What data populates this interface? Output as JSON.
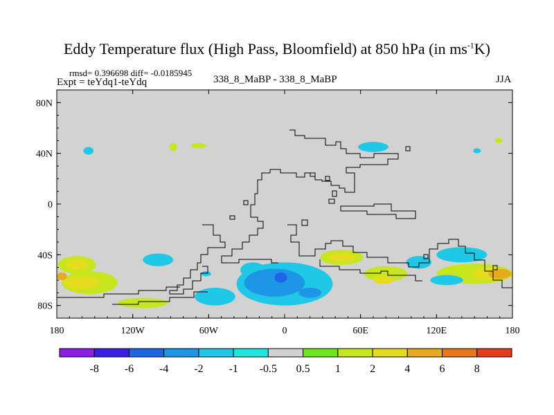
{
  "chart_data": {
    "type": "heatmap",
    "title_main": "Eddy Temperature flux (High Pass, Bloomfield) at 850 hPa (in ms",
    "title_sup": "-1",
    "title_end": "K)",
    "stats": "rmsd= 0.396698 diff= -0.0185945",
    "expt": "Expt = teYdq1-teYdq",
    "cases": "338_8_MaBP - 338_8_MaBP",
    "season": "JJA",
    "x_range": [
      -180,
      180
    ],
    "y_range": [
      -90,
      90
    ],
    "x_ticks": [
      {
        "value": -180,
        "label": "180"
      },
      {
        "value": -120,
        "label": "120W"
      },
      {
        "value": -60,
        "label": "60W"
      },
      {
        "value": 0,
        "label": "0"
      },
      {
        "value": 60,
        "label": "60E"
      },
      {
        "value": 120,
        "label": "120E"
      },
      {
        "value": 180,
        "label": "180"
      }
    ],
    "y_ticks": [
      {
        "value": 80,
        "label": "80N"
      },
      {
        "value": 40,
        "label": "40N"
      },
      {
        "value": 0,
        "label": "0"
      },
      {
        "value": -40,
        "label": "40S"
      },
      {
        "value": -80,
        "label": "80S"
      }
    ],
    "colorbar": {
      "levels": [
        "-8",
        "-6",
        "-4",
        "-2",
        "-1",
        "-0.5",
        "0.5",
        "1",
        "2",
        "4",
        "6",
        "8"
      ],
      "colors": [
        "#8c1ee6",
        "#3a1ee6",
        "#1e64e6",
        "#1e96e6",
        "#1ec8e6",
        "#1ee6dc",
        "#d2d2d2",
        "#6ee61e",
        "#c8e61e",
        "#e6dc1e",
        "#e6aa1e",
        "#e6781e",
        "#e63c1e"
      ]
    },
    "anomalies": [
      {
        "lon": -155,
        "lat": 42,
        "rx": 4,
        "ry": 3,
        "level": "-1"
      },
      {
        "lon": -88,
        "lat": 45,
        "rx": 3,
        "ry": 3,
        "level": "1"
      },
      {
        "lon": -68,
        "lat": 46,
        "rx": 6,
        "ry": 2,
        "level": "1"
      },
      {
        "lon": 70,
        "lat": 45,
        "rx": 12,
        "ry": 4,
        "level": "-1"
      },
      {
        "lon": 152,
        "lat": 42,
        "rx": 3,
        "ry": 2,
        "level": "-1"
      },
      {
        "lon": 169,
        "lat": 50,
        "rx": 3,
        "ry": 2,
        "level": "1"
      },
      {
        "lon": -164,
        "lat": -48,
        "rx": 15,
        "ry": 7,
        "level": "1"
      },
      {
        "lon": -164,
        "lat": -48,
        "rx": 9,
        "ry": 4,
        "level": "2"
      },
      {
        "lon": -154,
        "lat": -62,
        "rx": 22,
        "ry": 9,
        "level": "1"
      },
      {
        "lon": -160,
        "lat": -62,
        "rx": 14,
        "ry": 5,
        "level": "2"
      },
      {
        "lon": -176,
        "lat": -57,
        "rx": 4,
        "ry": 3,
        "level": "4"
      },
      {
        "lon": -100,
        "lat": -44,
        "rx": 12,
        "ry": 5,
        "level": "-1"
      },
      {
        "lon": -112,
        "lat": -78,
        "rx": 20,
        "ry": 4,
        "level": "1"
      },
      {
        "lon": -55,
        "lat": -73,
        "rx": 16,
        "ry": 7,
        "level": "-1"
      },
      {
        "lon": -62,
        "lat": -55,
        "rx": 4,
        "ry": 2,
        "level": "-1"
      },
      {
        "lon": -25,
        "lat": -52,
        "rx": 10,
        "ry": 6,
        "level": "-1"
      },
      {
        "lon": 0,
        "lat": -63,
        "rx": 38,
        "ry": 17,
        "level": "-1"
      },
      {
        "lon": -8,
        "lat": -62,
        "rx": 24,
        "ry": 11,
        "level": "-2"
      },
      {
        "lon": -3,
        "lat": -58,
        "rx": 5,
        "ry": 4,
        "level": "-4"
      },
      {
        "lon": 20,
        "lat": -70,
        "rx": 9,
        "ry": 4,
        "level": "-2"
      },
      {
        "lon": 45,
        "lat": -42,
        "rx": 17,
        "ry": 6,
        "level": "1"
      },
      {
        "lon": 45,
        "lat": -42,
        "rx": 11,
        "ry": 3,
        "level": "2"
      },
      {
        "lon": 80,
        "lat": -55,
        "rx": 17,
        "ry": 6,
        "level": "1"
      },
      {
        "lon": 78,
        "lat": -60,
        "rx": 8,
        "ry": 3,
        "level": "2"
      },
      {
        "lon": 106,
        "lat": -46,
        "rx": 10,
        "ry": 5,
        "level": "-1"
      },
      {
        "lon": 140,
        "lat": -40,
        "rx": 20,
        "ry": 6,
        "level": "-1"
      },
      {
        "lon": 150,
        "lat": -55,
        "rx": 30,
        "ry": 8,
        "level": "1"
      },
      {
        "lon": 163,
        "lat": -55,
        "rx": 15,
        "ry": 5,
        "level": "2"
      },
      {
        "lon": 170,
        "lat": -55,
        "rx": 9,
        "ry": 4,
        "level": "4"
      },
      {
        "lon": 128,
        "lat": -60,
        "rx": 13,
        "ry": 4,
        "level": "-1"
      }
    ]
  }
}
